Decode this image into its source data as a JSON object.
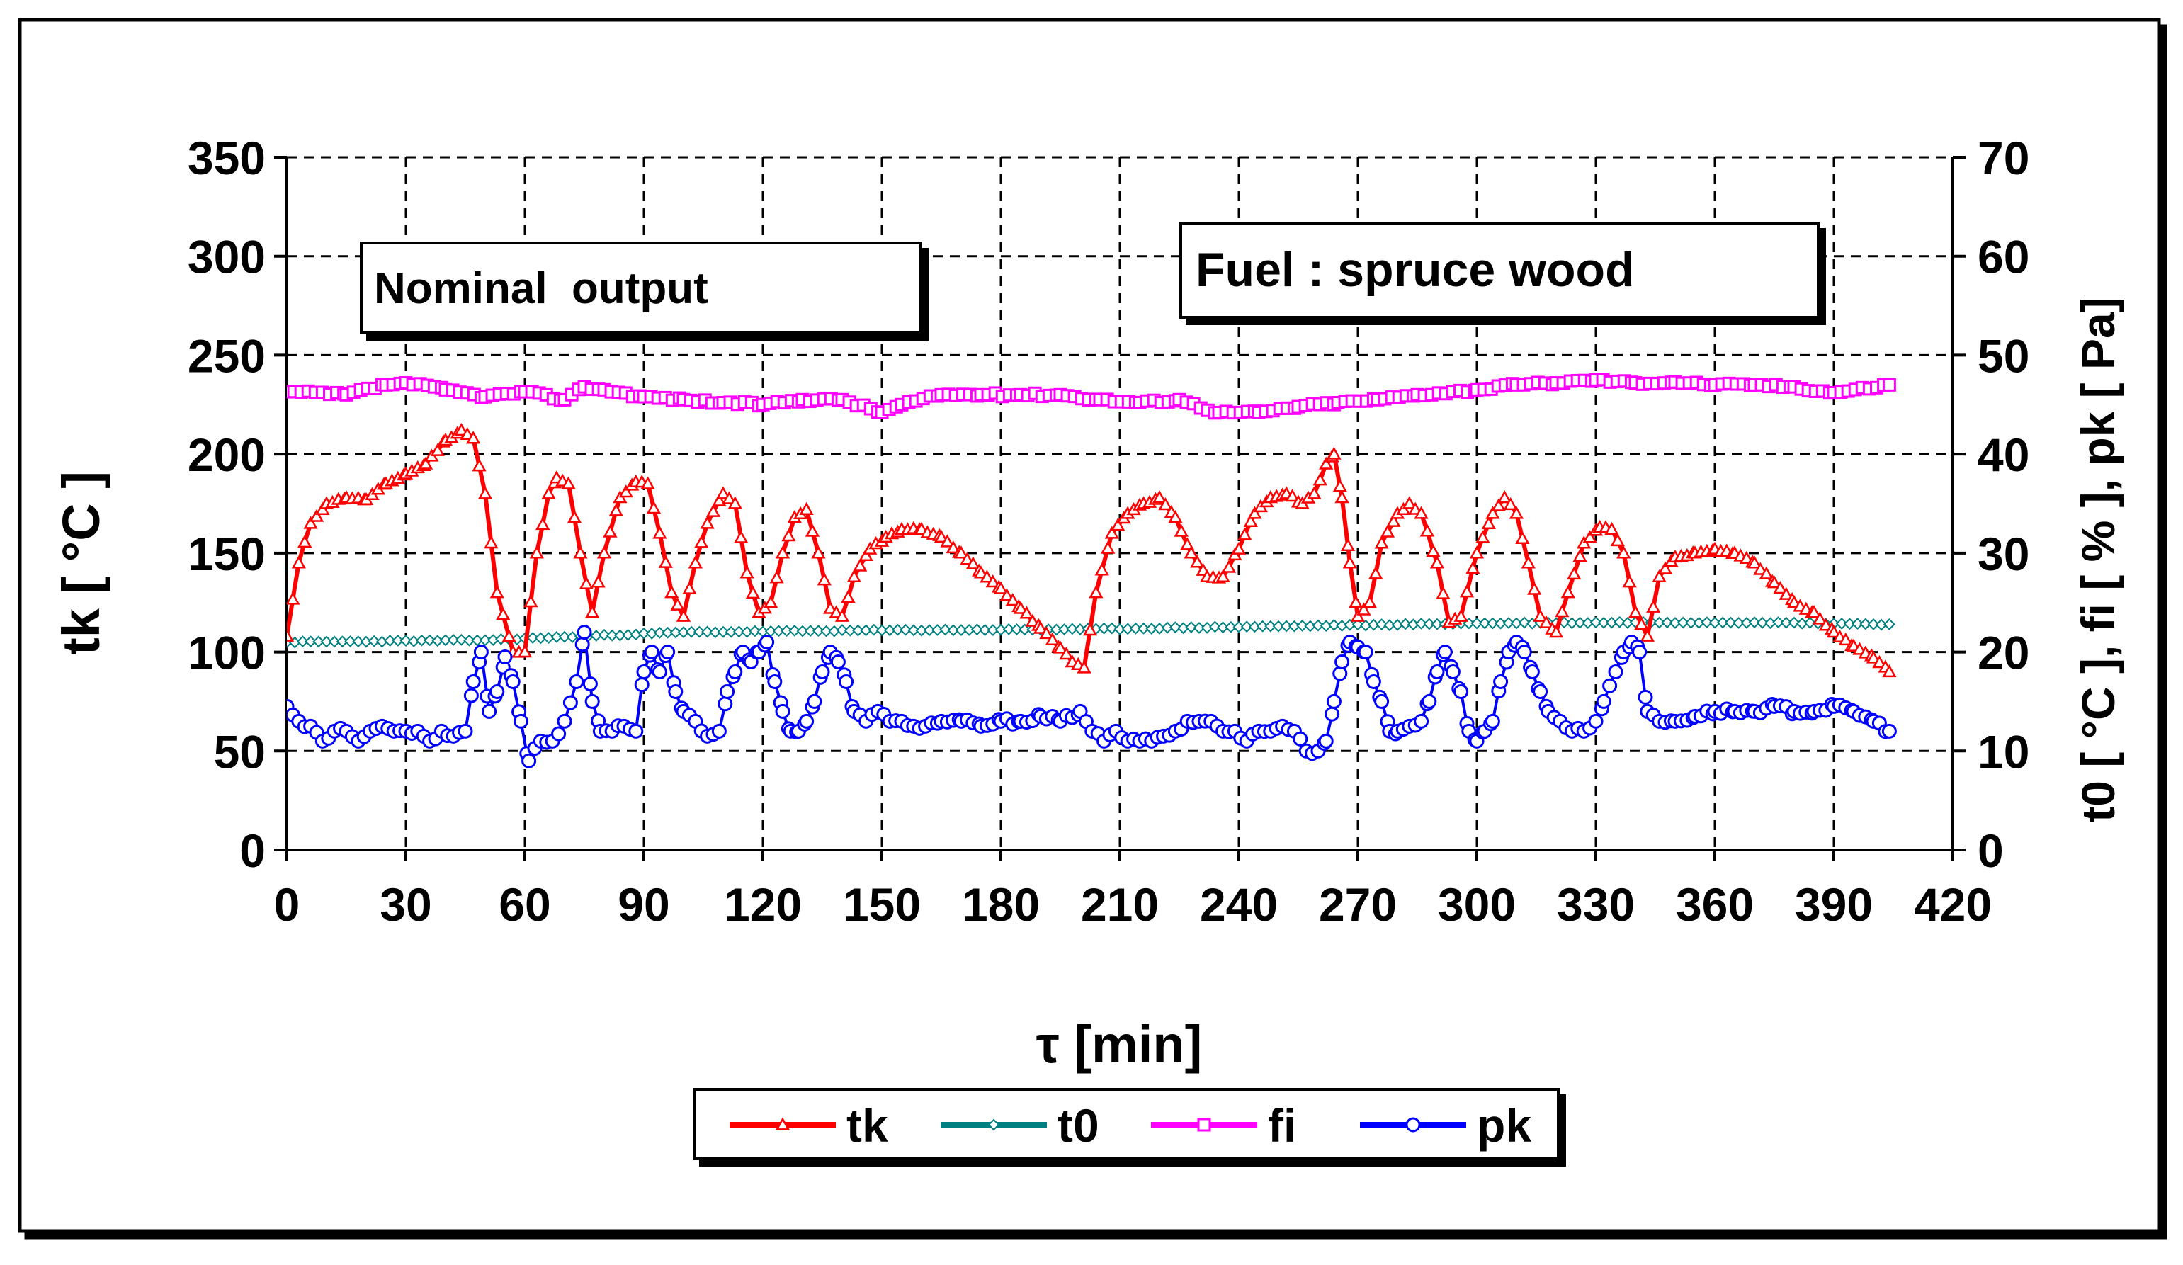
{
  "chart_data": {
    "type": "line",
    "title": "",
    "xlabel": "τ [min]",
    "ylabel": "tk [ °C ]",
    "y2label": "t0 [ °C ], fi [ % ], pk [ Pa]",
    "xlim": [
      0,
      420
    ],
    "ylim": [
      0,
      350
    ],
    "y2lim": [
      0,
      70
    ],
    "x_ticks": [
      "0",
      "30",
      "60",
      "90",
      "120",
      "150",
      "180",
      "210",
      "240",
      "270",
      "300",
      "330",
      "360",
      "390",
      "420"
    ],
    "y_ticks": [
      "0",
      "50",
      "100",
      "150",
      "200",
      "250",
      "300",
      "350"
    ],
    "y2_ticks": [
      "0",
      "10",
      "20",
      "30",
      "40",
      "50",
      "60",
      "70"
    ],
    "grid": true,
    "legend_position": "bottom-center",
    "annotations": [
      {
        "id": "nominal",
        "text": "Nominal  output"
      },
      {
        "id": "fuel",
        "text": "Fuel : spruce wood"
      }
    ],
    "series": [
      {
        "name": "tk",
        "axis": "left",
        "color": "#ff0000",
        "marker": "triangle",
        "points": [
          [
            0,
            108
          ],
          [
            3,
            145
          ],
          [
            6,
            165
          ],
          [
            10,
            175
          ],
          [
            15,
            178
          ],
          [
            20,
            177
          ],
          [
            25,
            185
          ],
          [
            30,
            190
          ],
          [
            35,
            195
          ],
          [
            40,
            207
          ],
          [
            44,
            212
          ],
          [
            47,
            208
          ],
          [
            50,
            180
          ],
          [
            53,
            130
          ],
          [
            57,
            100
          ],
          [
            60,
            100
          ],
          [
            63,
            150
          ],
          [
            66,
            180
          ],
          [
            68,
            188
          ],
          [
            71,
            185
          ],
          [
            74,
            150
          ],
          [
            77,
            120
          ],
          [
            80,
            150
          ],
          [
            84,
            178
          ],
          [
            88,
            186
          ],
          [
            91,
            185
          ],
          [
            94,
            160
          ],
          [
            97,
            130
          ],
          [
            100,
            118
          ],
          [
            103,
            145
          ],
          [
            106,
            165
          ],
          [
            110,
            180
          ],
          [
            113,
            175
          ],
          [
            116,
            140
          ],
          [
            119,
            120
          ],
          [
            122,
            125
          ],
          [
            125,
            150
          ],
          [
            128,
            168
          ],
          [
            131,
            172
          ],
          [
            134,
            150
          ],
          [
            137,
            122
          ],
          [
            140,
            118
          ],
          [
            143,
            138
          ],
          [
            147,
            152
          ],
          [
            151,
            158
          ],
          [
            155,
            162
          ],
          [
            160,
            162
          ],
          [
            165,
            158
          ],
          [
            170,
            150
          ],
          [
            175,
            140
          ],
          [
            180,
            132
          ],
          [
            185,
            122
          ],
          [
            190,
            112
          ],
          [
            195,
            102
          ],
          [
            198,
            95
          ],
          [
            201,
            92
          ],
          [
            204,
            130
          ],
          [
            208,
            160
          ],
          [
            212,
            170
          ],
          [
            216,
            175
          ],
          [
            220,
            178
          ],
          [
            224,
            168
          ],
          [
            228,
            150
          ],
          [
            232,
            138
          ],
          [
            236,
            138
          ],
          [
            240,
            152
          ],
          [
            244,
            170
          ],
          [
            248,
            178
          ],
          [
            252,
            180
          ],
          [
            256,
            175
          ],
          [
            259,
            180
          ],
          [
            262,
            195
          ],
          [
            264,
            200
          ],
          [
            266,
            178
          ],
          [
            268,
            145
          ],
          [
            270,
            118
          ],
          [
            273,
            125
          ],
          [
            276,
            155
          ],
          [
            280,
            170
          ],
          [
            283,
            175
          ],
          [
            286,
            170
          ],
          [
            290,
            145
          ],
          [
            293,
            115
          ],
          [
            296,
            118
          ],
          [
            300,
            150
          ],
          [
            304,
            170
          ],
          [
            307,
            178
          ],
          [
            310,
            170
          ],
          [
            313,
            145
          ],
          [
            316,
            118
          ],
          [
            320,
            110
          ],
          [
            323,
            130
          ],
          [
            327,
            155
          ],
          [
            331,
            163
          ],
          [
            334,
            162
          ],
          [
            337,
            150
          ],
          [
            340,
            120
          ],
          [
            343,
            108
          ],
          [
            346,
            138
          ],
          [
            350,
            148
          ],
          [
            355,
            150
          ],
          [
            360,
            152
          ],
          [
            365,
            150
          ],
          [
            370,
            145
          ],
          [
            375,
            135
          ],
          [
            380,
            125
          ],
          [
            385,
            120
          ],
          [
            390,
            110
          ],
          [
            395,
            103
          ],
          [
            400,
            97
          ],
          [
            404,
            90
          ]
        ]
      },
      {
        "name": "t0",
        "axis": "right",
        "color": "#008080",
        "marker": "diamond",
        "points": [
          [
            0,
            21
          ],
          [
            50,
            21.2
          ],
          [
            100,
            22
          ],
          [
            150,
            22.2
          ],
          [
            200,
            22.3
          ],
          [
            250,
            22.6
          ],
          [
            300,
            22.9
          ],
          [
            340,
            23
          ],
          [
            370,
            23
          ],
          [
            404,
            22.8
          ]
        ]
      },
      {
        "name": "fi",
        "axis": "right",
        "color": "#ff00ff",
        "marker": "square",
        "points": [
          [
            0,
            46.3
          ],
          [
            15,
            46
          ],
          [
            25,
            47
          ],
          [
            30,
            47.2
          ],
          [
            40,
            46.5
          ],
          [
            50,
            45.8
          ],
          [
            60,
            46.3
          ],
          [
            70,
            45.5
          ],
          [
            75,
            46.8
          ],
          [
            80,
            46.5
          ],
          [
            90,
            45.8
          ],
          [
            100,
            45.5
          ],
          [
            110,
            45.2
          ],
          [
            120,
            45
          ],
          [
            130,
            45.5
          ],
          [
            140,
            45.5
          ],
          [
            150,
            44.2
          ],
          [
            155,
            45
          ],
          [
            165,
            46
          ],
          [
            175,
            46
          ],
          [
            185,
            46
          ],
          [
            195,
            46
          ],
          [
            205,
            45.5
          ],
          [
            215,
            45.2
          ],
          [
            225,
            45.5
          ],
          [
            235,
            44.2
          ],
          [
            245,
            44.2
          ],
          [
            255,
            44.8
          ],
          [
            265,
            45.2
          ],
          [
            275,
            45.5
          ],
          [
            285,
            46
          ],
          [
            300,
            46.5
          ],
          [
            310,
            47
          ],
          [
            320,
            47.2
          ],
          [
            330,
            47.5
          ],
          [
            340,
            47.2
          ],
          [
            350,
            47.3
          ],
          [
            360,
            47
          ],
          [
            370,
            47
          ],
          [
            380,
            46.8
          ],
          [
            390,
            46.2
          ],
          [
            404,
            47
          ]
        ]
      },
      {
        "name": "pk",
        "axis": "right",
        "color": "#0000ff",
        "marker": "circle",
        "points": [
          [
            0,
            14.5
          ],
          [
            3,
            13
          ],
          [
            6,
            12.5
          ],
          [
            9,
            11
          ],
          [
            12,
            12
          ],
          [
            15,
            12
          ],
          [
            18,
            11
          ],
          [
            21,
            12
          ],
          [
            24,
            12.5
          ],
          [
            27,
            12
          ],
          [
            30,
            12
          ],
          [
            33,
            12
          ],
          [
            36,
            11
          ],
          [
            39,
            12
          ],
          [
            42,
            11.5
          ],
          [
            45,
            12
          ],
          [
            47,
            17
          ],
          [
            49,
            20
          ],
          [
            51,
            14
          ],
          [
            53,
            16
          ],
          [
            55,
            19.5
          ],
          [
            57,
            17
          ],
          [
            59,
            13
          ],
          [
            61,
            9
          ],
          [
            64,
            11
          ],
          [
            67,
            11
          ],
          [
            70,
            13
          ],
          [
            73,
            17
          ],
          [
            75,
            22
          ],
          [
            77,
            15
          ],
          [
            79,
            12
          ],
          [
            82,
            12
          ],
          [
            85,
            12.5
          ],
          [
            88,
            12
          ],
          [
            90,
            18
          ],
          [
            92,
            20
          ],
          [
            94,
            18
          ],
          [
            96,
            20
          ],
          [
            98,
            16
          ],
          [
            100,
            14
          ],
          [
            103,
            13
          ],
          [
            106,
            11.5
          ],
          [
            109,
            12
          ],
          [
            111,
            16
          ],
          [
            113,
            18
          ],
          [
            115,
            20
          ],
          [
            117,
            19
          ],
          [
            119,
            20
          ],
          [
            121,
            21
          ],
          [
            123,
            17
          ],
          [
            125,
            14
          ],
          [
            127,
            12
          ],
          [
            129,
            12
          ],
          [
            131,
            13
          ],
          [
            133,
            15
          ],
          [
            135,
            18
          ],
          [
            137,
            20
          ],
          [
            139,
            19
          ],
          [
            141,
            17
          ],
          [
            143,
            14
          ],
          [
            146,
            13
          ],
          [
            149,
            14
          ],
          [
            152,
            13
          ],
          [
            155,
            13
          ],
          [
            158,
            12.5
          ],
          [
            161,
            12.5
          ],
          [
            165,
            13
          ],
          [
            170,
            13
          ],
          [
            175,
            12.5
          ],
          [
            180,
            13
          ],
          [
            185,
            13
          ],
          [
            190,
            13.5
          ],
          [
            195,
            13
          ],
          [
            200,
            14
          ],
          [
            203,
            12
          ],
          [
            206,
            11
          ],
          [
            209,
            12
          ],
          [
            212,
            11
          ],
          [
            215,
            11
          ],
          [
            218,
            11
          ],
          [
            221,
            11.5
          ],
          [
            224,
            12
          ],
          [
            227,
            13
          ],
          [
            230,
            13
          ],
          [
            233,
            13
          ],
          [
            236,
            12
          ],
          [
            239,
            12
          ],
          [
            242,
            11
          ],
          [
            245,
            12
          ],
          [
            248,
            12
          ],
          [
            251,
            12.5
          ],
          [
            254,
            12
          ],
          [
            257,
            10
          ],
          [
            260,
            10
          ],
          [
            262,
            11
          ],
          [
            264,
            15
          ],
          [
            266,
            19
          ],
          [
            268,
            21
          ],
          [
            270,
            20.5
          ],
          [
            272,
            20
          ],
          [
            274,
            17
          ],
          [
            276,
            15
          ],
          [
            278,
            12
          ],
          [
            280,
            12
          ],
          [
            283,
            12.5
          ],
          [
            286,
            13
          ],
          [
            288,
            15
          ],
          [
            290,
            18
          ],
          [
            292,
            20
          ],
          [
            294,
            18
          ],
          [
            296,
            16
          ],
          [
            298,
            12
          ],
          [
            300,
            11
          ],
          [
            302,
            12
          ],
          [
            304,
            13
          ],
          [
            306,
            17
          ],
          [
            308,
            20
          ],
          [
            310,
            21
          ],
          [
            312,
            20
          ],
          [
            314,
            18
          ],
          [
            316,
            16
          ],
          [
            318,
            14
          ],
          [
            321,
            13
          ],
          [
            324,
            12
          ],
          [
            327,
            12
          ],
          [
            330,
            13
          ],
          [
            332,
            15
          ],
          [
            335,
            18
          ],
          [
            337,
            20
          ],
          [
            339,
            21
          ],
          [
            341,
            20
          ],
          [
            343,
            14
          ],
          [
            346,
            13
          ],
          [
            350,
            13
          ],
          [
            355,
            13.5
          ],
          [
            360,
            14
          ],
          [
            365,
            14
          ],
          [
            370,
            14
          ],
          [
            375,
            14.5
          ],
          [
            380,
            14
          ],
          [
            385,
            14
          ],
          [
            390,
            14.5
          ],
          [
            395,
            14
          ],
          [
            400,
            13
          ],
          [
            404,
            12
          ]
        ]
      }
    ]
  }
}
